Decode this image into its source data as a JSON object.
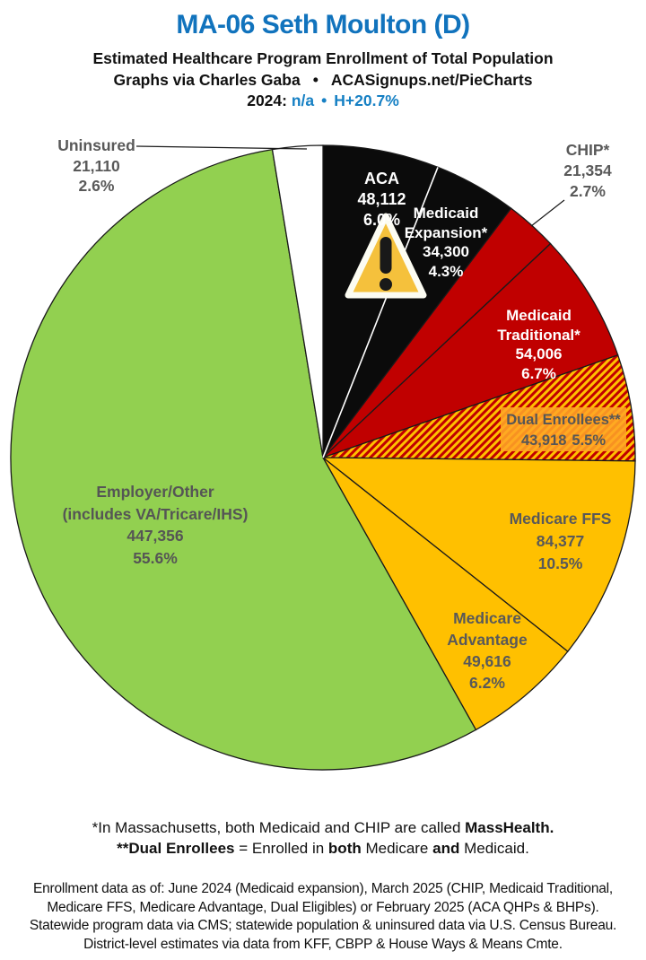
{
  "header": {
    "title": "MA-06 Seth Moulton (D)",
    "subtitle": "Estimated Healthcare Program Enrollment of Total Population",
    "byline": "Graphs via Charles Gaba",
    "byline_bullet": "•",
    "byline_site": "ACASignups.net/PieCharts",
    "year_label": "2024:",
    "year_value": "n/a",
    "year_bullet": "•",
    "margin_value": "H+20.7%"
  },
  "colors": {
    "title_blue": "#1173BD",
    "accent_blue": "#1680C4",
    "black_slice": "#0B0B0B",
    "red_slice": "#C00000",
    "gold_slice": "#FFC000",
    "green_slice": "#92D050",
    "white_slice": "#FFFFFF",
    "dual_box_orange": "#FFA626",
    "label_gray": "#595959",
    "slice_stroke": "#1A1A1A"
  },
  "chart_data": {
    "type": "pie",
    "title": "Estimated Healthcare Program Enrollment of Total Population",
    "start_angle_deg": -90,
    "direction": "clockwise",
    "stroke_color": "#1A1A1A",
    "slices": [
      {
        "id": "aca",
        "name": "ACA",
        "value": "48,112",
        "value_num": 48112,
        "pct": "6.0%",
        "percent": 6.0,
        "fill": "#0B0B0B",
        "text_color": "#FFFFFF"
      },
      {
        "id": "medicaid-expansion",
        "name": "Medicaid Expansion*",
        "value": "34,300",
        "value_num": 34300,
        "pct": "4.3%",
        "percent": 4.3,
        "fill": "#0B0B0B",
        "text_color": "#FFFFFF"
      },
      {
        "id": "chip",
        "name": "CHIP*",
        "value": "21,354",
        "value_num": 21354,
        "pct": "2.7%",
        "percent": 2.7,
        "fill": "#C00000",
        "text_color": "#595959"
      },
      {
        "id": "medicaid-traditional",
        "name": "Medicaid Traditional*",
        "value": "54,006",
        "value_num": 54006,
        "pct": "6.7%",
        "percent": 6.7,
        "fill": "#C00000",
        "text_color": "#FFFFFF"
      },
      {
        "id": "dual-enrollees",
        "name": "Dual Enrollees**",
        "value": "43,918",
        "value_num": 43918,
        "pct": "5.5%",
        "percent": 5.5,
        "fill": "hatch",
        "text_color": "#565656"
      },
      {
        "id": "medicare-ffs",
        "name": "Medicare FFS",
        "value": "84,377",
        "value_num": 84377,
        "pct": "10.5%",
        "percent": 10.5,
        "fill": "#FFC000",
        "text_color": "#595959"
      },
      {
        "id": "medicare-advantage",
        "name": "Medicare Advantage",
        "value": "49,616",
        "value_num": 49616,
        "pct": "6.2%",
        "percent": 6.2,
        "fill": "#FFC000",
        "text_color": "#595959"
      },
      {
        "id": "employer-other",
        "name": "Employer/Other",
        "name2": "(includes VA/Tricare/IHS)",
        "value": "447,356",
        "value_num": 447356,
        "pct": "55.6%",
        "percent": 55.6,
        "fill": "#92D050",
        "text_color": "#555555"
      },
      {
        "id": "uninsured",
        "name": "Uninsured",
        "value": "21,110",
        "value_num": 21110,
        "pct": "2.6%",
        "percent": 2.6,
        "fill": "#FFFFFF",
        "text_color": "#595959"
      }
    ]
  },
  "footnotes": {
    "massachusetts_note": {
      "text": "*In Massachusetts, both Medicaid and CHIP are called ",
      "bold": "MassHealth."
    },
    "dual_note": {
      "bold1": "**Dual Enrollees",
      "text1": " = Enrolled in ",
      "bold2": "both",
      "text2": " Medicare ",
      "bold3": "and",
      "text3": " Medicaid."
    },
    "data_notes": [
      "Enrollment data as of: June 2024 (Medicaid expansion), March 2025 (CHIP, Medicaid Traditional,",
      "Medicare FFS, Medicare Advantage, Dual Eligibles) or February 2025 (ACA QHPs & BHPs).",
      "Statewide program data via CMS; statewide population & uninsured data via U.S. Census Bureau.",
      "District-level estimates via data from KFF, CBPP & House Ways & Means Cmte."
    ]
  }
}
